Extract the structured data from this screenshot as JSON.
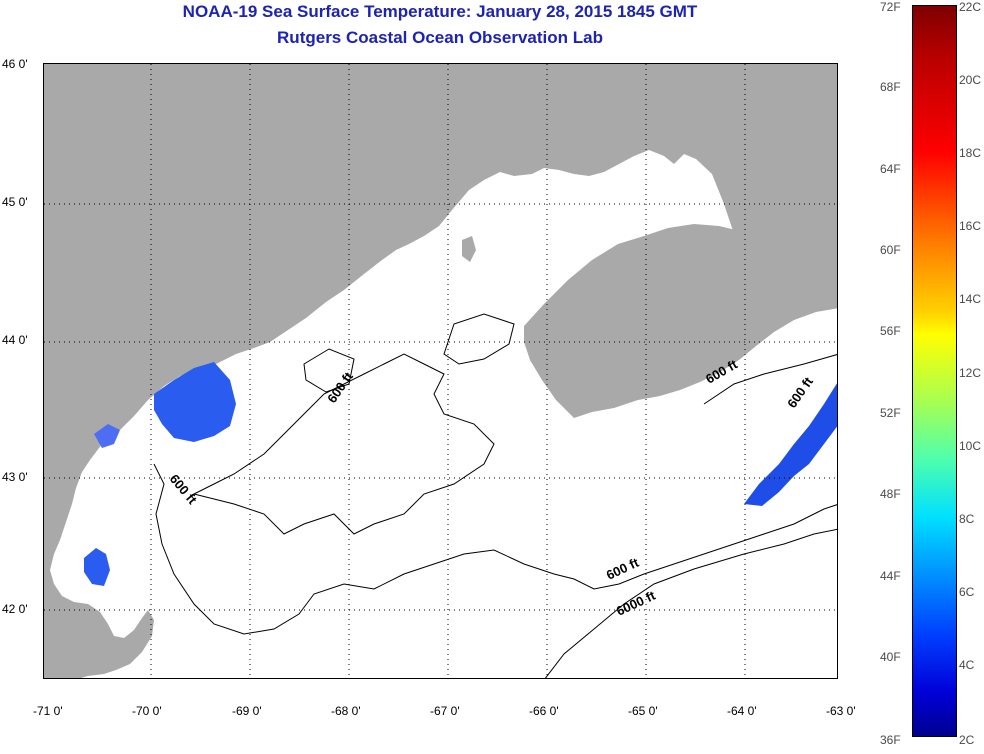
{
  "title_line1": "NOAA-19 Sea Surface Temperature:  January 28, 2015 1845 GMT",
  "title_line2": "Rutgers Coastal Ocean Observation Lab",
  "lat_labels": [
    "46 0'",
    "45 0'",
    "44 0'",
    "43 0'",
    "42 0'"
  ],
  "lon_labels": [
    "-71 0'",
    "-70 0'",
    "-69 0'",
    "-68 0'",
    "-67 0'",
    "-66 0'",
    "-65 0'",
    "-64 0'",
    "-63 0'"
  ],
  "contour_labels": [
    "600 ft",
    "600 ft",
    "600 ft",
    "600 ft",
    "600 ft",
    "6000 ft"
  ],
  "colorbar": {
    "f_labels": [
      "72F",
      "68F",
      "64F",
      "60F",
      "56F",
      "52F",
      "48F",
      "44F",
      "40F",
      "36F"
    ],
    "c_labels": [
      "22C",
      "20C",
      "18C",
      "16C",
      "14C",
      "12C",
      "10C",
      "8C",
      "6C",
      "4C",
      "2C"
    ]
  },
  "colors": {
    "title": "#1d23b3",
    "land": "#a9a9a9",
    "water_no_data": "#ffffff",
    "cold_sst": "#2a5cf0"
  }
}
